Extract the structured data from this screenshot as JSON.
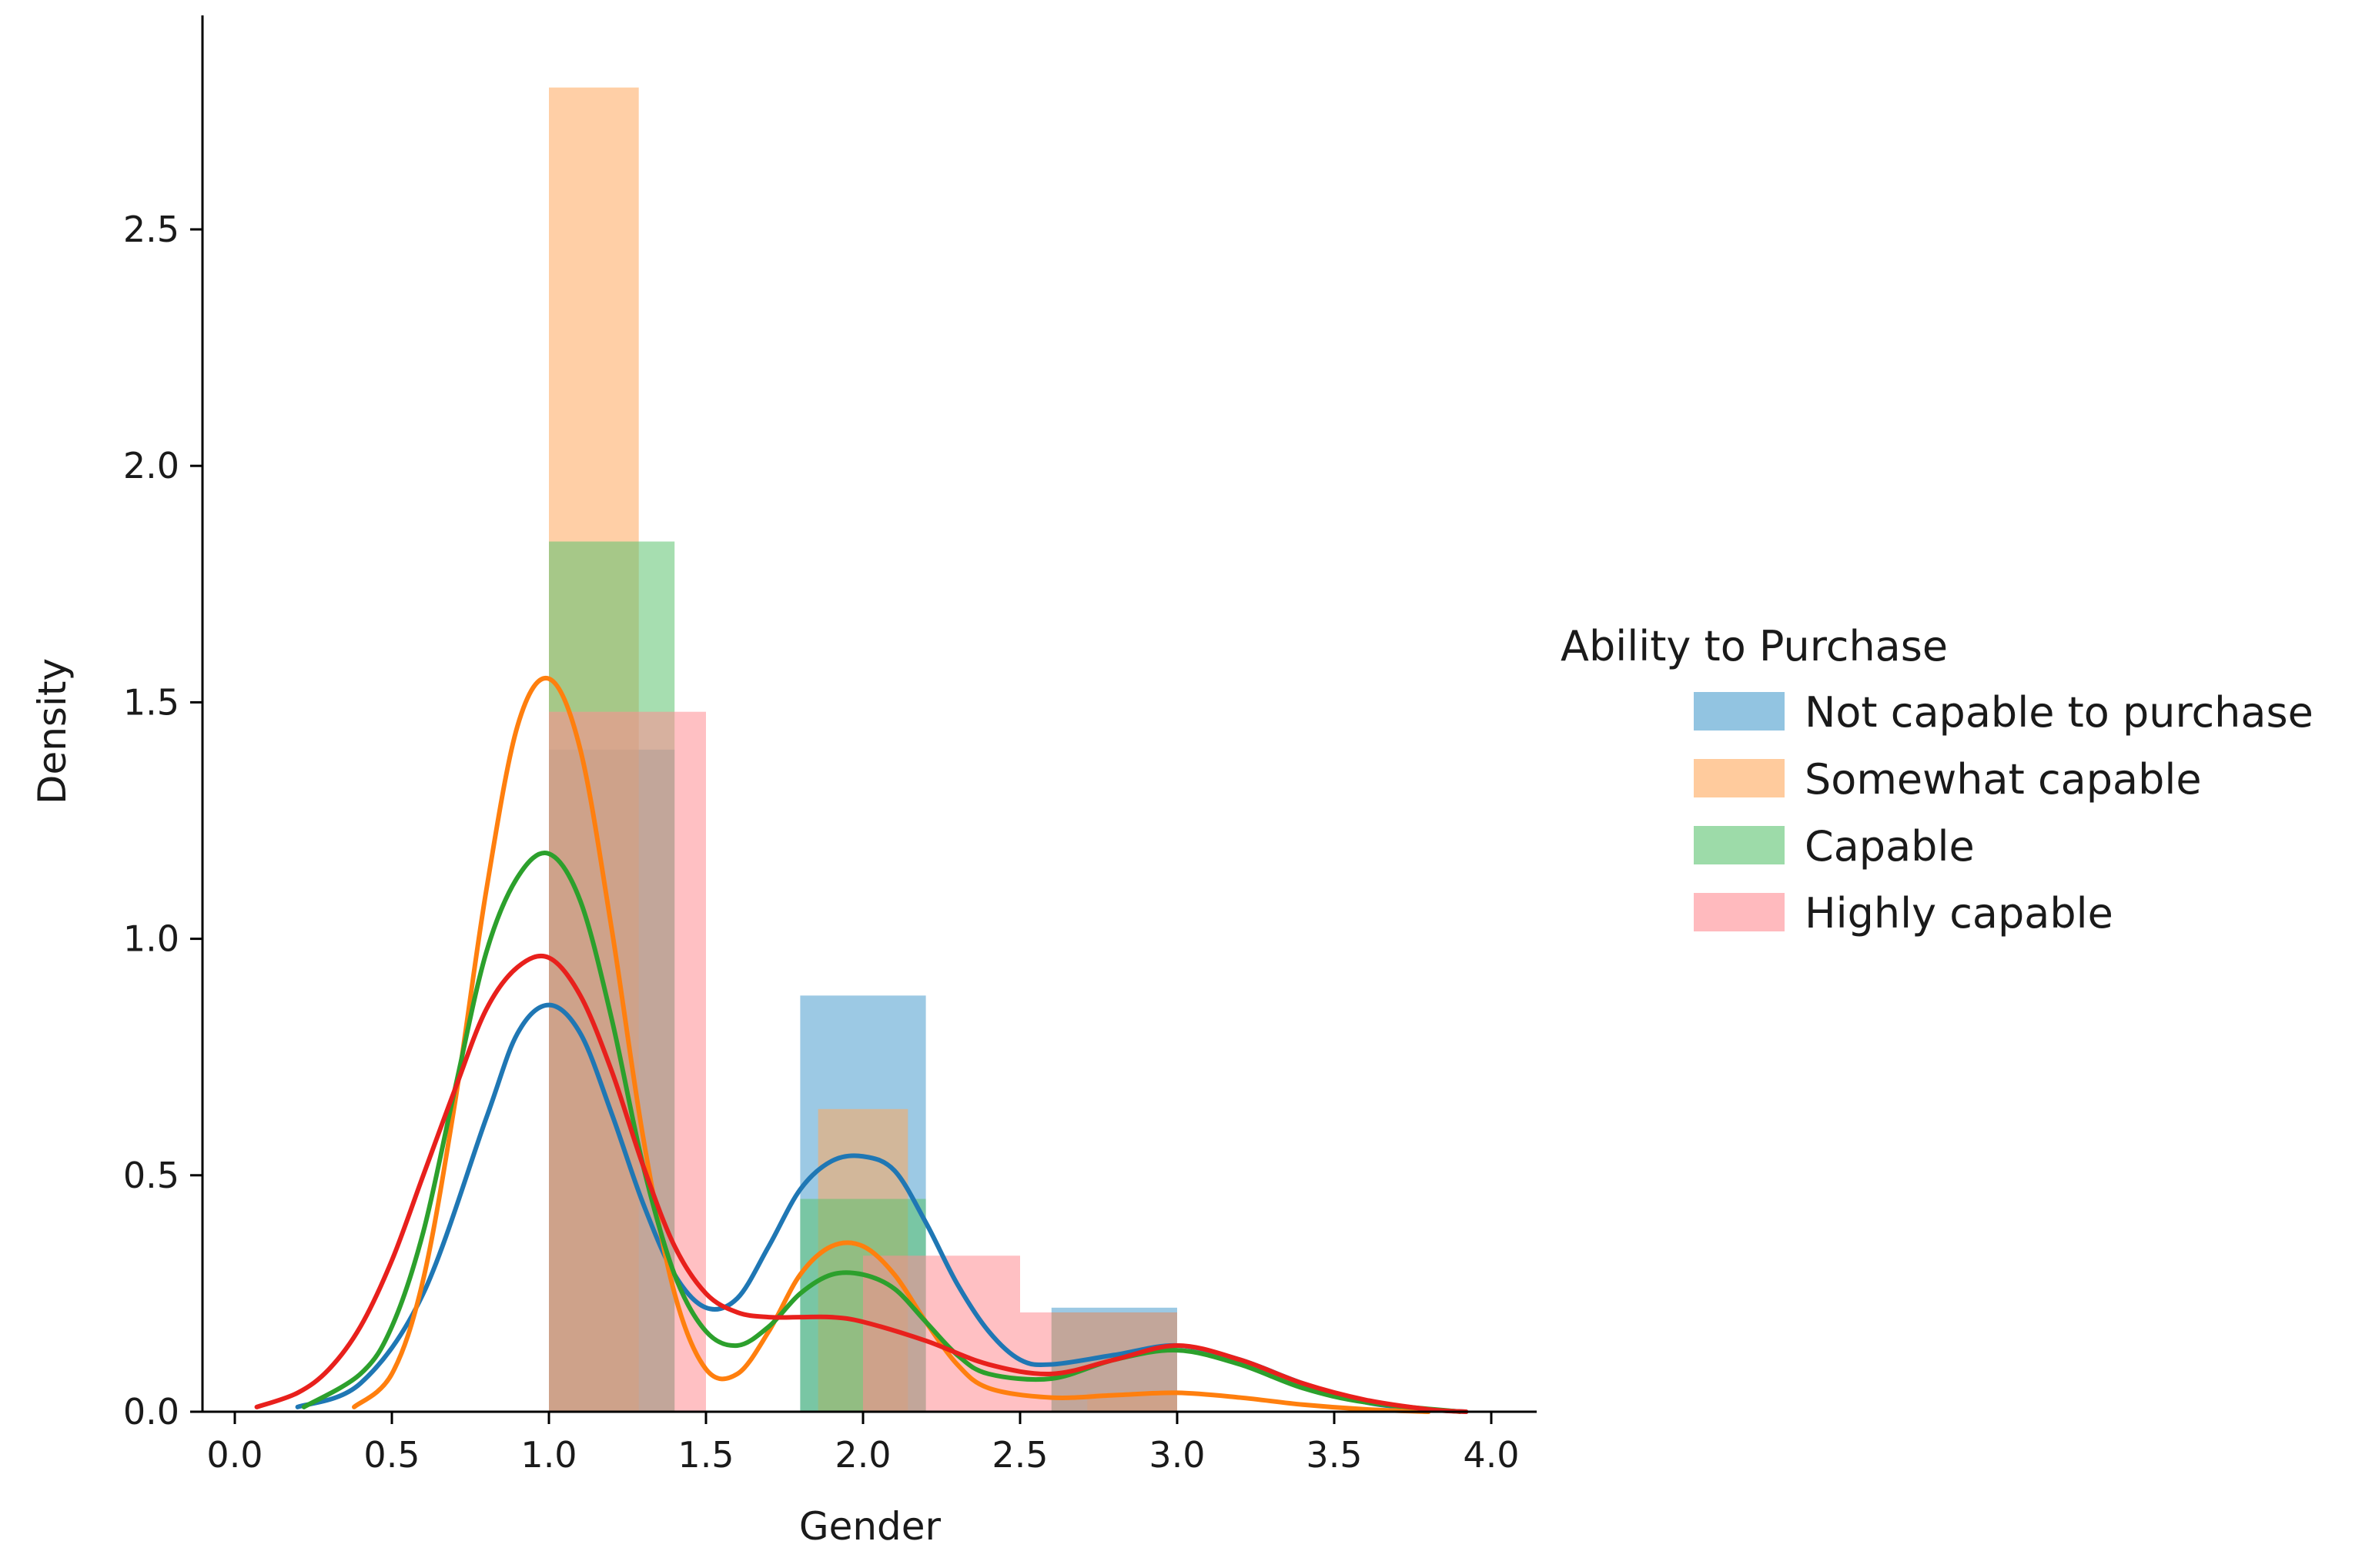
{
  "chart_data": {
    "type": "bar",
    "subtype": "histogram with KDE overlay",
    "title": "",
    "xlabel": "Gender",
    "ylabel": "Density",
    "xlim": [
      -0.05,
      4.1
    ],
    "ylim": [
      0,
      2.95
    ],
    "x_ticks": [
      0.0,
      0.5,
      1.0,
      1.5,
      2.0,
      2.5,
      3.0,
      3.5,
      4.0
    ],
    "x_tick_labels": [
      "0.0",
      "0.5",
      "1.0",
      "1.5",
      "2.0",
      "2.5",
      "3.0",
      "3.5",
      "4.0"
    ],
    "y_ticks": [
      0.0,
      0.5,
      1.0,
      1.5,
      2.0,
      2.5
    ],
    "y_tick_labels": [
      "0.0",
      "0.5",
      "1.0",
      "1.5",
      "2.0",
      "2.5"
    ],
    "grid": false,
    "legend": {
      "title": "Ability to Purchase",
      "placement": "right"
    },
    "series": [
      {
        "name": "Not capable to purchase",
        "bar_color": "#4a9ccd",
        "line_color": "#1f77b4",
        "bins": [
          {
            "x0": 1.0,
            "x1": 1.4,
            "value": 1.4
          },
          {
            "x0": 1.8,
            "x1": 2.2,
            "value": 0.88
          },
          {
            "x0": 2.6,
            "x1": 3.0,
            "value": 0.22
          }
        ],
        "kde": [
          [
            0.2,
            0.01
          ],
          [
            0.4,
            0.06
          ],
          [
            0.6,
            0.25
          ],
          [
            0.8,
            0.62
          ],
          [
            0.9,
            0.8
          ],
          [
            1.0,
            0.86
          ],
          [
            1.1,
            0.8
          ],
          [
            1.2,
            0.63
          ],
          [
            1.3,
            0.44
          ],
          [
            1.4,
            0.29
          ],
          [
            1.5,
            0.22
          ],
          [
            1.6,
            0.24
          ],
          [
            1.7,
            0.35
          ],
          [
            1.8,
            0.47
          ],
          [
            1.9,
            0.53
          ],
          [
            2.0,
            0.54
          ],
          [
            2.1,
            0.51
          ],
          [
            2.2,
            0.4
          ],
          [
            2.3,
            0.27
          ],
          [
            2.4,
            0.17
          ],
          [
            2.5,
            0.11
          ],
          [
            2.6,
            0.1
          ],
          [
            2.8,
            0.12
          ],
          [
            3.0,
            0.14
          ],
          [
            3.2,
            0.11
          ],
          [
            3.4,
            0.06
          ],
          [
            3.6,
            0.02
          ],
          [
            3.8,
            0.005
          ],
          [
            3.92,
            0.0
          ]
        ]
      },
      {
        "name": "Somewhat capable",
        "bar_color": "#ffa85c",
        "line_color": "#ff7f0e",
        "bins": [
          {
            "x0": 1.0,
            "x1": 1.286,
            "value": 2.8
          },
          {
            "x0": 1.857,
            "x1": 2.143,
            "value": 0.64
          },
          {
            "x0": 2.714,
            "x1": 3.0,
            "value": 0.04
          }
        ],
        "kde": [
          [
            0.38,
            0.01
          ],
          [
            0.5,
            0.08
          ],
          [
            0.6,
            0.28
          ],
          [
            0.7,
            0.65
          ],
          [
            0.8,
            1.1
          ],
          [
            0.9,
            1.45
          ],
          [
            1.0,
            1.55
          ],
          [
            1.1,
            1.4
          ],
          [
            1.2,
            1.02
          ],
          [
            1.3,
            0.58
          ],
          [
            1.4,
            0.25
          ],
          [
            1.5,
            0.09
          ],
          [
            1.6,
            0.08
          ],
          [
            1.7,
            0.17
          ],
          [
            1.8,
            0.29
          ],
          [
            1.9,
            0.35
          ],
          [
            2.0,
            0.35
          ],
          [
            2.1,
            0.29
          ],
          [
            2.2,
            0.19
          ],
          [
            2.3,
            0.1
          ],
          [
            2.4,
            0.05
          ],
          [
            2.6,
            0.03
          ],
          [
            2.8,
            0.035
          ],
          [
            3.0,
            0.04
          ],
          [
            3.2,
            0.03
          ],
          [
            3.4,
            0.015
          ],
          [
            3.6,
            0.005
          ],
          [
            3.8,
            0.0
          ]
        ]
      },
      {
        "name": "Capable",
        "bar_color": "#5cc36f",
        "line_color": "#2ca02c",
        "bins": [
          {
            "x0": 1.0,
            "x1": 1.4,
            "value": 1.84
          },
          {
            "x0": 1.8,
            "x1": 2.2,
            "value": 0.45
          },
          {
            "x0": 2.6,
            "x1": 3.0,
            "value": 0.21
          }
        ],
        "kde": [
          [
            0.22,
            0.01
          ],
          [
            0.4,
            0.08
          ],
          [
            0.5,
            0.18
          ],
          [
            0.6,
            0.38
          ],
          [
            0.7,
            0.68
          ],
          [
            0.8,
            0.97
          ],
          [
            0.9,
            1.13
          ],
          [
            1.0,
            1.18
          ],
          [
            1.1,
            1.08
          ],
          [
            1.2,
            0.83
          ],
          [
            1.3,
            0.52
          ],
          [
            1.4,
            0.29
          ],
          [
            1.5,
            0.17
          ],
          [
            1.6,
            0.14
          ],
          [
            1.7,
            0.18
          ],
          [
            1.8,
            0.25
          ],
          [
            1.9,
            0.29
          ],
          [
            2.0,
            0.29
          ],
          [
            2.1,
            0.26
          ],
          [
            2.2,
            0.19
          ],
          [
            2.3,
            0.12
          ],
          [
            2.4,
            0.08
          ],
          [
            2.6,
            0.07
          ],
          [
            2.8,
            0.11
          ],
          [
            3.0,
            0.13
          ],
          [
            3.2,
            0.1
          ],
          [
            3.4,
            0.05
          ],
          [
            3.6,
            0.02
          ],
          [
            3.9,
            0.0
          ]
        ]
      },
      {
        "name": "Highly capable",
        "bar_color": "#ff8c92",
        "line_color": "#e8201c",
        "bins": [
          {
            "x0": 1.0,
            "x1": 1.5,
            "value": 1.48
          },
          {
            "x0": 2.0,
            "x1": 2.5,
            "value": 0.33
          },
          {
            "x0": 2.5,
            "x1": 3.0,
            "value": 0.21
          }
        ],
        "kde": [
          [
            0.07,
            0.01
          ],
          [
            0.2,
            0.04
          ],
          [
            0.3,
            0.09
          ],
          [
            0.4,
            0.18
          ],
          [
            0.5,
            0.32
          ],
          [
            0.6,
            0.5
          ],
          [
            0.7,
            0.68
          ],
          [
            0.8,
            0.85
          ],
          [
            0.9,
            0.94
          ],
          [
            1.0,
            0.96
          ],
          [
            1.1,
            0.88
          ],
          [
            1.2,
            0.72
          ],
          [
            1.3,
            0.52
          ],
          [
            1.4,
            0.35
          ],
          [
            1.5,
            0.25
          ],
          [
            1.6,
            0.21
          ],
          [
            1.7,
            0.2
          ],
          [
            1.8,
            0.2
          ],
          [
            1.9,
            0.2
          ],
          [
            2.0,
            0.19
          ],
          [
            2.2,
            0.15
          ],
          [
            2.4,
            0.1
          ],
          [
            2.6,
            0.08
          ],
          [
            2.8,
            0.11
          ],
          [
            3.0,
            0.14
          ],
          [
            3.2,
            0.11
          ],
          [
            3.4,
            0.06
          ],
          [
            3.6,
            0.025
          ],
          [
            3.8,
            0.005
          ],
          [
            3.92,
            0.0
          ]
        ]
      }
    ]
  }
}
